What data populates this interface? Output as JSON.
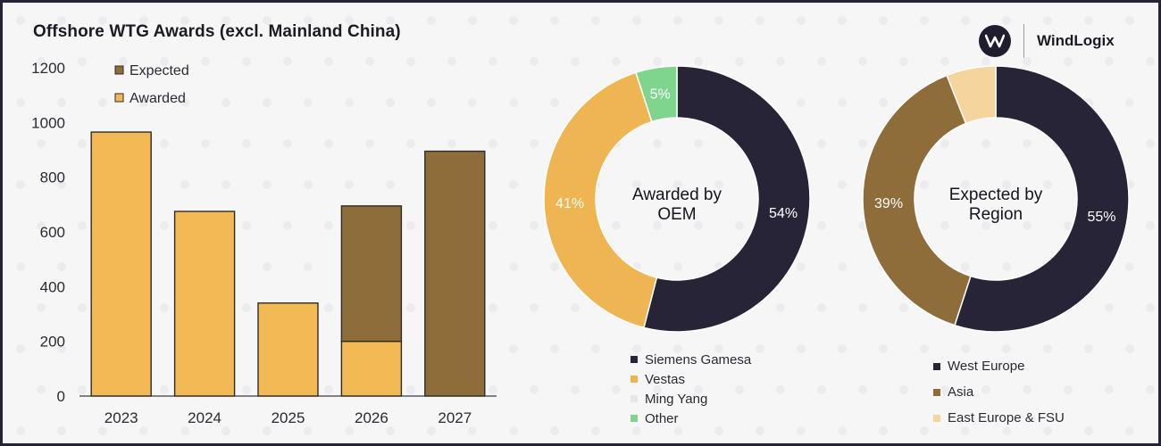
{
  "header": {
    "title": "Offshore WTG Awards (excl. Mainland China)"
  },
  "brand": {
    "name": "WindLogix"
  },
  "colors": {
    "awarded": "#f2b955",
    "expected": "#8e6d3a",
    "siemens": "#272438",
    "vestas": "#efb552",
    "ming_yang": "#e6e6e6",
    "other": "#7fd58d",
    "west_europe": "#272438",
    "asia": "#8e6d3a",
    "east_europe": "#f5d49d"
  },
  "chart_data": [
    {
      "type": "bar",
      "stacked": true,
      "categories": [
        "2023",
        "2024",
        "2025",
        "2026",
        "2027"
      ],
      "series": [
        {
          "name": "Awarded",
          "values": [
            965,
            675,
            340,
            200,
            0
          ]
        },
        {
          "name": "Expected",
          "values": [
            0,
            0,
            0,
            495,
            895
          ]
        }
      ],
      "ylim": [
        0,
        1200
      ],
      "yticks": [
        0,
        200,
        400,
        600,
        800,
        1000,
        1200
      ],
      "legend": [
        "Expected",
        "Awarded"
      ],
      "legend_position": "top-left"
    },
    {
      "type": "pie",
      "donut": true,
      "center_label": [
        "Awarded by",
        "OEM"
      ],
      "slices": [
        {
          "name": "Siemens Gamesa",
          "value": 54,
          "label": "54%"
        },
        {
          "name": "Vestas",
          "value": 41,
          "label": "41%"
        },
        {
          "name": "Ming Yang",
          "value": 0,
          "label": ""
        },
        {
          "name": "Other",
          "value": 5,
          "label": "5%"
        }
      ],
      "legend_position": "bottom"
    },
    {
      "type": "pie",
      "donut": true,
      "center_label": [
        "Expected by",
        "Region"
      ],
      "slices": [
        {
          "name": "West Europe",
          "value": 55,
          "label": "55%"
        },
        {
          "name": "Asia",
          "value": 39,
          "label": "39%"
        },
        {
          "name": "East Europe & FSU",
          "value": 6,
          "label": ""
        }
      ],
      "legend_position": "bottom"
    }
  ]
}
